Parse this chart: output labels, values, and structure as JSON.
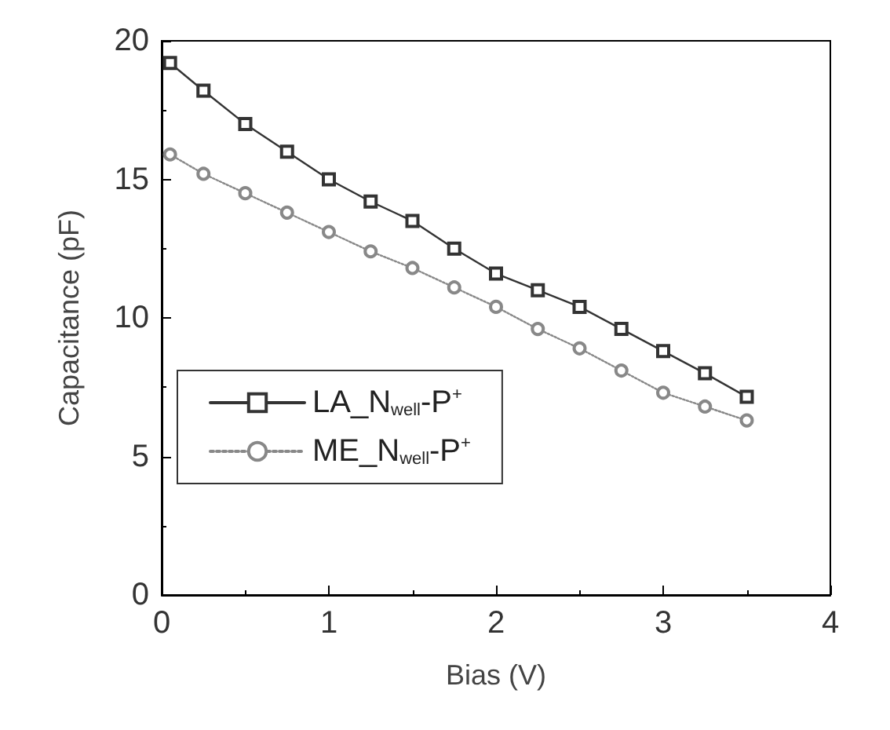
{
  "chart_data": {
    "type": "line",
    "xlabel": "Bias (V)",
    "ylabel": "Capacitance (pF)",
    "xlim": [
      0,
      4
    ],
    "xticks": [
      0,
      1,
      2,
      3,
      4
    ],
    "ylim": [
      0,
      20
    ],
    "yticks": [
      0,
      5,
      10,
      15,
      20
    ],
    "grid": false,
    "legend": "left",
    "series": [
      {
        "name": "LA_N$_{well}$-P$^{+}$",
        "color": "#333333",
        "marker": "square",
        "line_style": "solid",
        "x": [
          0.05,
          0.25,
          0.5,
          0.75,
          1,
          1.25,
          1.5,
          1.75,
          2,
          2.25,
          2.5,
          2.75,
          3,
          3.25,
          3.5
        ],
        "values": [
          19.2,
          18.2,
          17.0,
          16.0,
          15.0,
          14.2,
          13.5,
          12.5,
          11.6,
          11.0,
          10.4,
          9.6,
          8.8,
          8.0,
          7.15
        ]
      },
      {
        "name": "ME_N$_{well}$-P$^{+}$",
        "color": "#888888",
        "marker": "circle",
        "line_style": "dotted",
        "x": [
          0.05,
          0.25,
          0.5,
          0.75,
          1,
          1.25,
          1.5,
          1.75,
          2,
          2.25,
          2.5,
          2.75,
          3,
          3.25,
          3.5
        ],
        "values": [
          15.9,
          15.2,
          14.5,
          13.8,
          13.1,
          12.4,
          11.8,
          11.1,
          10.4,
          9.6,
          8.9,
          8.1,
          7.3,
          6.8,
          6.3
        ]
      }
    ]
  }
}
